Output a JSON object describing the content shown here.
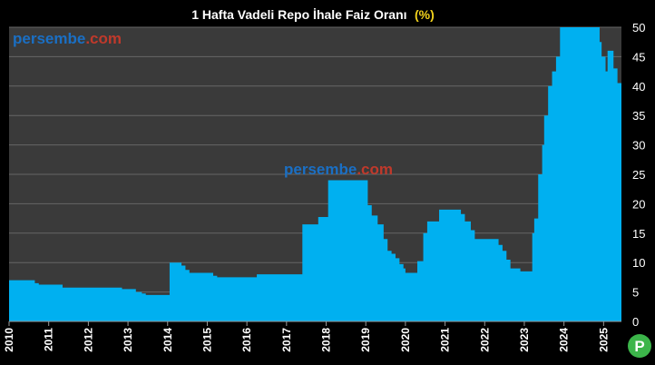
{
  "chart_data": {
    "type": "area",
    "title": "1 Hafta Vadeli Repo İhale Faiz Oranı",
    "title_unit": "(%)",
    "ylim": [
      0,
      50
    ],
    "yticks": [
      "0",
      "5",
      "10",
      "15",
      "20",
      "25",
      "30",
      "35",
      "40",
      "45",
      "50"
    ],
    "xticks": [
      "2010",
      "2011",
      "2012",
      "2013",
      "2014",
      "2015",
      "2016",
      "2017",
      "2018",
      "2019",
      "2020",
      "2021",
      "2022",
      "2023",
      "2024",
      "2025"
    ],
    "xlim": [
      2010.0,
      2025.45
    ],
    "grid": true,
    "colors": {
      "area": "#00b0f0",
      "plot_bg": "#3a3a3a",
      "grid": "#666666",
      "title_unit": "#f2d21c"
    },
    "series": [
      {
        "values": [
          [
            2010.0,
            7.0
          ],
          [
            2010.65,
            6.5
          ],
          [
            2010.75,
            6.25
          ],
          [
            2011.3,
            6.25
          ],
          [
            2011.35,
            5.75
          ],
          [
            2012.85,
            5.5
          ],
          [
            2013.2,
            5.0
          ],
          [
            2013.35,
            4.75
          ],
          [
            2013.45,
            4.5
          ],
          [
            2014.05,
            10.0
          ],
          [
            2014.35,
            9.5
          ],
          [
            2014.45,
            8.75
          ],
          [
            2014.55,
            8.25
          ],
          [
            2015.15,
            7.75
          ],
          [
            2015.25,
            7.5
          ],
          [
            2016.2,
            7.5
          ],
          [
            2016.25,
            8.0
          ],
          [
            2017.4,
            16.5
          ],
          [
            2017.8,
            17.75
          ],
          [
            2018.05,
            24.0
          ],
          [
            2019.05,
            19.75
          ],
          [
            2019.15,
            18.0
          ],
          [
            2019.3,
            16.5
          ],
          [
            2019.45,
            14.0
          ],
          [
            2019.55,
            12.0
          ],
          [
            2019.65,
            11.5
          ],
          [
            2019.75,
            10.75
          ],
          [
            2019.85,
            9.75
          ],
          [
            2019.95,
            9.0
          ],
          [
            2020.0,
            8.25
          ],
          [
            2020.3,
            10.25
          ],
          [
            2020.45,
            15.0
          ],
          [
            2020.55,
            17.0
          ],
          [
            2020.85,
            19.0
          ],
          [
            2021.4,
            18.25
          ],
          [
            2021.5,
            17.0
          ],
          [
            2021.65,
            15.5
          ],
          [
            2021.75,
            14.0
          ],
          [
            2022.35,
            13.0
          ],
          [
            2022.45,
            12.0
          ],
          [
            2022.55,
            10.5
          ],
          [
            2022.65,
            9.0
          ],
          [
            2022.9,
            8.5
          ],
          [
            2023.2,
            15.0
          ],
          [
            2023.25,
            17.5
          ],
          [
            2023.35,
            25.0
          ],
          [
            2023.45,
            30.0
          ],
          [
            2023.5,
            35.0
          ],
          [
            2023.6,
            40.0
          ],
          [
            2023.7,
            42.5
          ],
          [
            2023.8,
            45.0
          ],
          [
            2023.9,
            50.0
          ],
          [
            2024.9,
            47.5
          ],
          [
            2024.95,
            45.0
          ],
          [
            2025.05,
            42.5
          ],
          [
            2025.1,
            46.0
          ],
          [
            2025.25,
            43.0
          ],
          [
            2025.35,
            40.5
          ],
          [
            2025.45,
            40.5
          ]
        ]
      }
    ],
    "watermarks": [
      {
        "part1": "persembe",
        "part2": ".com"
      },
      {
        "part1": "persembe",
        "part2": ".com"
      }
    ],
    "logo": "P"
  }
}
